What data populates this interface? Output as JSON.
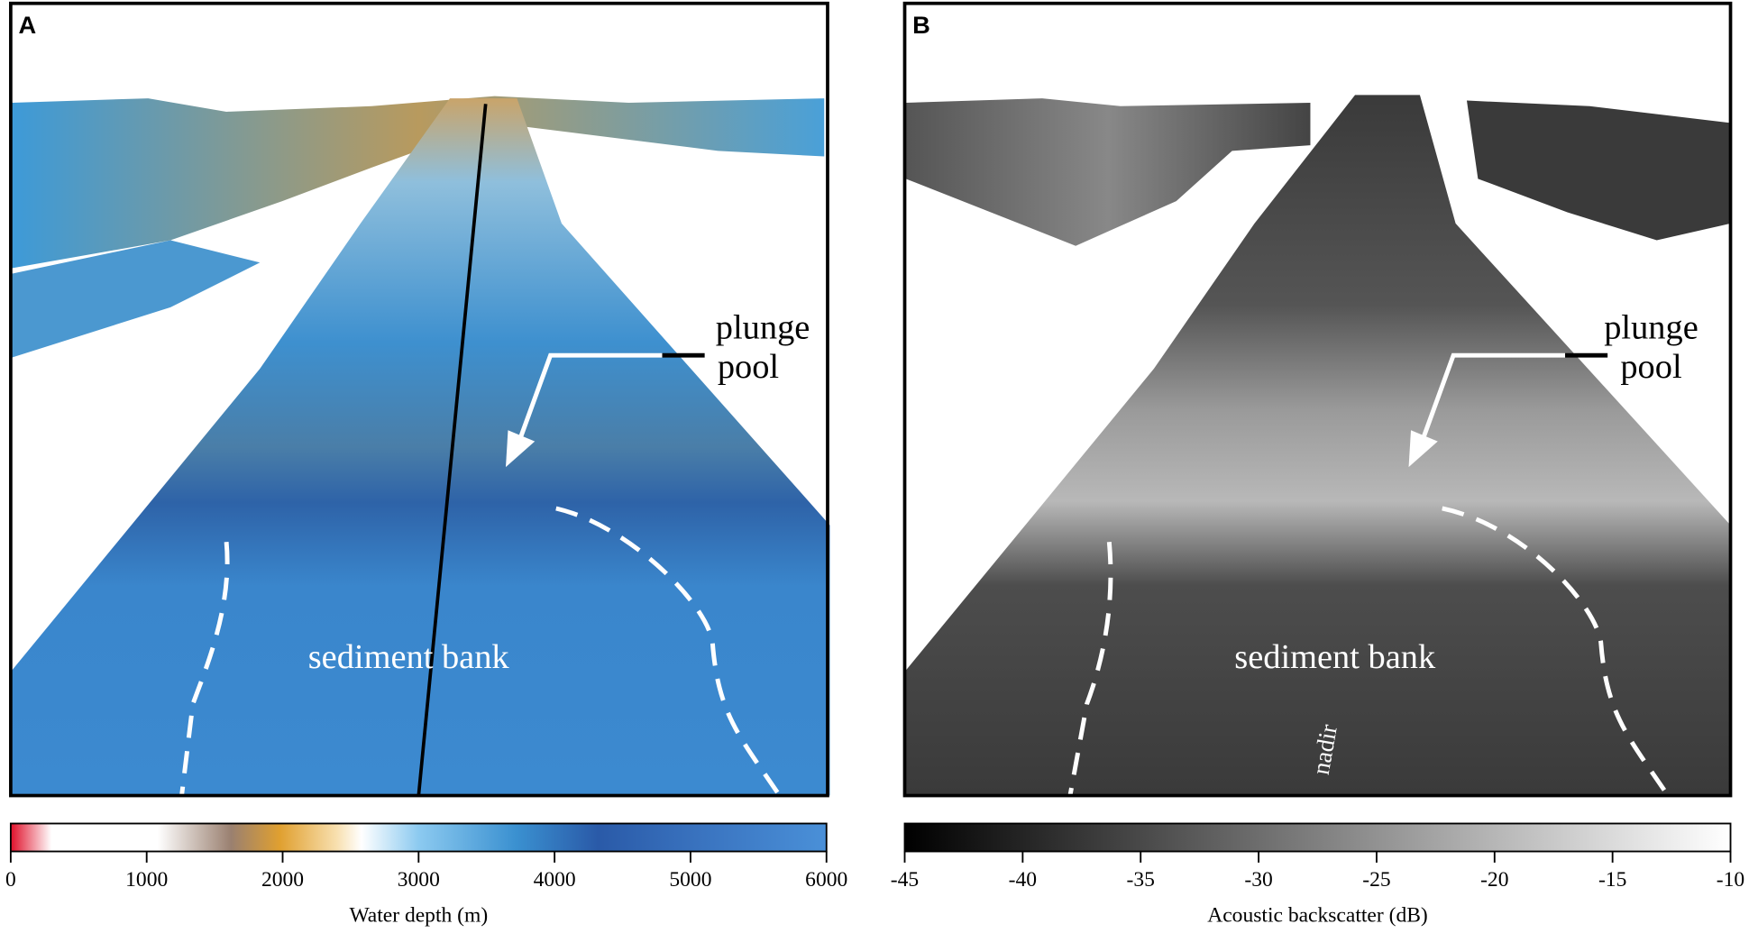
{
  "panels": [
    {
      "label": "A",
      "annotations": [
        "plunge",
        "pool",
        "sediment bank"
      ],
      "colorbar": {
        "label": "Water depth (m)",
        "lim": [
          0,
          6000
        ],
        "ticks": [
          0,
          1000,
          2000,
          3000,
          4000,
          5000,
          6000
        ]
      }
    },
    {
      "label": "B",
      "annotations": [
        "plunge",
        "pool",
        "sediment bank",
        "nadir"
      ],
      "colorbar": {
        "label": "Acoustic backscatter (dB)",
        "lim": [
          -45,
          -10
        ],
        "ticks": [
          -45,
          -40,
          -35,
          -30,
          -25,
          -20,
          -15,
          -10
        ]
      }
    }
  ]
}
